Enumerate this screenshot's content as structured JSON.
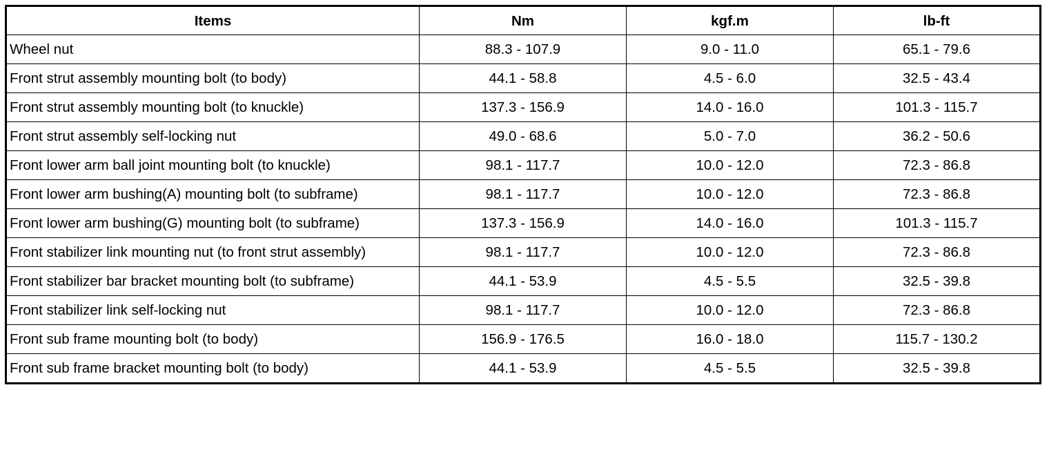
{
  "table": {
    "headers": [
      "Items",
      "Nm",
      "kgf.m",
      "lb-ft"
    ],
    "rows": [
      [
        "Wheel nut",
        "88.3 - 107.9",
        "9.0 - 11.0",
        "65.1 - 79.6"
      ],
      [
        "Front strut assembly mounting bolt (to body)",
        "44.1 - 58.8",
        "4.5 - 6.0",
        "32.5 - 43.4"
      ],
      [
        "Front strut assembly mounting bolt (to knuckle)",
        "137.3 - 156.9",
        "14.0 - 16.0",
        "101.3 - 115.7"
      ],
      [
        "Front strut assembly self-locking nut",
        "49.0 - 68.6",
        "5.0 - 7.0",
        "36.2 - 50.6"
      ],
      [
        "Front lower arm ball joint mounting bolt (to knuckle)",
        "98.1 - 117.7",
        "10.0 - 12.0",
        "72.3 - 86.8"
      ],
      [
        "Front lower arm bushing(A) mounting bolt (to subframe)",
        "98.1 - 117.7",
        "10.0 - 12.0",
        "72.3 - 86.8"
      ],
      [
        "Front lower arm bushing(G) mounting bolt (to subframe)",
        "137.3 - 156.9",
        "14.0 - 16.0",
        "101.3 - 115.7"
      ],
      [
        "Front stabilizer link mounting nut (to front strut assembly)",
        "98.1 - 117.7",
        "10.0 - 12.0",
        "72.3 - 86.8"
      ],
      [
        "Front stabilizer bar bracket mounting bolt (to subframe)",
        "44.1 - 53.9",
        "4.5 - 5.5",
        "32.5 - 39.8"
      ],
      [
        "Front stabilizer link self-locking nut",
        "98.1 - 117.7",
        "10.0 - 12.0",
        "72.3 - 86.8"
      ],
      [
        "Front sub frame mounting bolt (to body)",
        "156.9 - 176.5",
        "16.0 - 18.0",
        "115.7 - 130.2"
      ],
      [
        "Front sub frame bracket mounting bolt (to body)",
        "44.1 - 53.9",
        "4.5 - 5.5",
        "32.5 - 39.8"
      ]
    ]
  }
}
